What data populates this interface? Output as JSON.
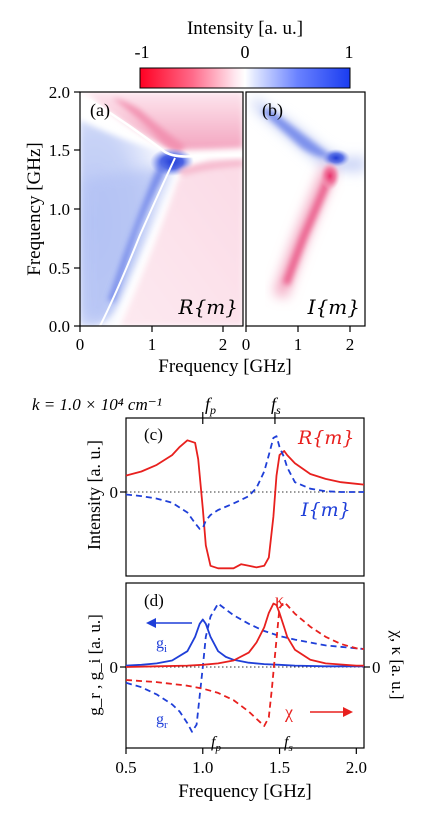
{
  "colorbar": {
    "label": "Intensity [a. u.]",
    "ticks": [
      "-1",
      "0",
      "1"
    ],
    "colors": {
      "neg": "#ff0022",
      "zero": "#ffffff",
      "pos": "#1a3cf0"
    }
  },
  "colors": {
    "red": "#e8201e",
    "blue": "#1f3fd8",
    "dotted": "#333333"
  },
  "panel_a": {
    "tag": "(a)",
    "label": "R{m}"
  },
  "panel_b": {
    "tag": "(b)",
    "label": "I{m}"
  },
  "panel_c": {
    "tag": "(c)",
    "label_red": "R{m}",
    "label_blue": "I{m}"
  },
  "panel_d": {
    "tag": "(d)",
    "kappa": "κ",
    "chi": "χ",
    "gi": "g",
    "gi_sub": "i",
    "gr": "g",
    "gr_sub": "r"
  },
  "k_label": "k = 1.0 × 10⁴ cm⁻¹",
  "fp_label": "f",
  "fp_sub": "p",
  "fs_label": "f",
  "fs_sub": "s",
  "chart_data": [
    {
      "type": "heatmap",
      "title": "(a) R{m}",
      "xlabel": "Frequency [GHz]",
      "ylabel": "Frequency [GHz]",
      "xlim": [
        0,
        2.3
      ],
      "ylim": [
        0,
        2.0
      ],
      "xticks": [
        "0",
        "1",
        "2"
      ],
      "yticks": [
        "0.0",
        "0.5",
        "1.0",
        "1.5",
        "2.0"
      ],
      "colorscale": {
        "min": -1,
        "max": 1
      }
    },
    {
      "type": "heatmap",
      "title": "(b) I{m}",
      "xlabel": "Frequency [GHz]",
      "xlim": [
        0,
        2.3
      ],
      "ylim": [
        0,
        2.0
      ],
      "xticks": [
        "0",
        "1",
        "2"
      ],
      "colorscale": {
        "min": -1,
        "max": 1
      }
    },
    {
      "type": "line",
      "title": "(c)",
      "ylabel": "Intensity [a. u.]",
      "xlim": [
        0.5,
        2.05
      ],
      "ytick": "0",
      "fp": 1.0,
      "fs": 1.47,
      "series": [
        {
          "name": "R{m}",
          "style": "solid",
          "color": "#e8201e",
          "x": [
            0.5,
            0.6,
            0.7,
            0.8,
            0.85,
            0.9,
            0.95,
            0.97,
            1.0,
            1.02,
            1.05,
            1.1,
            1.2,
            1.25,
            1.3,
            1.35,
            1.4,
            1.43,
            1.46,
            1.48,
            1.5,
            1.53,
            1.55,
            1.6,
            1.7,
            1.8,
            1.9,
            2.0,
            2.05
          ],
          "y": [
            0.2,
            0.25,
            0.33,
            0.45,
            0.55,
            0.63,
            0.6,
            0.4,
            -0.2,
            -0.65,
            -0.9,
            -0.93,
            -0.93,
            -0.88,
            -0.9,
            -0.92,
            -0.9,
            -0.8,
            -0.3,
            0.2,
            0.45,
            0.5,
            0.45,
            0.35,
            0.22,
            0.16,
            0.12,
            0.1,
            0.09
          ]
        },
        {
          "name": "I{m}",
          "style": "dashed",
          "color": "#1f3fd8",
          "x": [
            0.5,
            0.6,
            0.7,
            0.8,
            0.9,
            0.95,
            0.98,
            1.0,
            1.02,
            1.05,
            1.1,
            1.2,
            1.3,
            1.35,
            1.4,
            1.43,
            1.46,
            1.48,
            1.5,
            1.53,
            1.55,
            1.6,
            1.7,
            1.8,
            1.9,
            2.0,
            2.05
          ],
          "y": [
            -0.03,
            -0.05,
            -0.08,
            -0.13,
            -0.25,
            -0.38,
            -0.45,
            -0.44,
            -0.35,
            -0.28,
            -0.22,
            -0.14,
            -0.05,
            0.05,
            0.25,
            0.45,
            0.66,
            0.68,
            0.55,
            0.42,
            0.3,
            0.12,
            0.04,
            0.01,
            0.0,
            0.0,
            0.0
          ]
        }
      ]
    },
    {
      "type": "line",
      "title": "(d)",
      "ylabel": "g_r , g_i [a. u.]",
      "y2label": "χ, κ [a. u.]",
      "xlabel": "Frequency [GHz]",
      "xlim": [
        0.5,
        2.05
      ],
      "xticks": [
        0.5,
        1.0,
        1.5,
        2.0
      ],
      "xtick_labels": [
        "0.5",
        "1.0",
        "1.5",
        "2.0"
      ],
      "ytick": "0",
      "y2tick": "0",
      "series": [
        {
          "name": "g_i",
          "style": "solid",
          "color": "#1f3fd8",
          "x": [
            0.5,
            0.6,
            0.7,
            0.8,
            0.9,
            0.95,
            0.98,
            1.0,
            1.02,
            1.05,
            1.1,
            1.15,
            1.2,
            1.3,
            1.4,
            1.5,
            1.6,
            1.8,
            2.0,
            2.05
          ],
          "y": [
            0.02,
            0.03,
            0.05,
            0.09,
            0.22,
            0.42,
            0.6,
            0.66,
            0.6,
            0.42,
            0.22,
            0.14,
            0.1,
            0.06,
            0.04,
            0.03,
            0.02,
            0.01,
            0.01,
            0.01
          ]
        },
        {
          "name": "g_r",
          "style": "dashed",
          "color": "#1f3fd8",
          "x": [
            0.5,
            0.6,
            0.7,
            0.8,
            0.85,
            0.9,
            0.93,
            0.96,
            0.98,
            1.0,
            1.02,
            1.05,
            1.1,
            1.2,
            1.3,
            1.4,
            1.5,
            1.6,
            1.8,
            2.0,
            2.05
          ],
          "y": [
            -0.22,
            -0.28,
            -0.38,
            -0.52,
            -0.62,
            -0.78,
            -0.9,
            -0.8,
            -0.4,
            0.0,
            0.42,
            0.7,
            0.88,
            0.72,
            0.6,
            0.5,
            0.43,
            0.38,
            0.3,
            0.26,
            0.25
          ]
        },
        {
          "name": "κ",
          "style": "solid",
          "color": "#e8201e",
          "x": [
            0.5,
            0.7,
            0.9,
            1.0,
            1.1,
            1.2,
            1.3,
            1.35,
            1.4,
            1.43,
            1.46,
            1.48,
            1.5,
            1.53,
            1.55,
            1.6,
            1.7,
            1.8,
            2.0,
            2.05
          ],
          "y": [
            0.0,
            0.01,
            0.02,
            0.03,
            0.05,
            0.09,
            0.2,
            0.34,
            0.55,
            0.75,
            0.88,
            0.86,
            0.75,
            0.55,
            0.42,
            0.24,
            0.1,
            0.05,
            0.02,
            0.02
          ]
        },
        {
          "name": "χ",
          "style": "dashed",
          "color": "#e8201e",
          "x": [
            0.5,
            0.7,
            0.9,
            1.0,
            1.1,
            1.2,
            1.3,
            1.35,
            1.4,
            1.43,
            1.45,
            1.47,
            1.5,
            1.53,
            1.55,
            1.6,
            1.7,
            1.8,
            1.9,
            2.0,
            2.05
          ],
          "y": [
            -0.18,
            -0.21,
            -0.26,
            -0.3,
            -0.36,
            -0.46,
            -0.62,
            -0.72,
            -0.82,
            -0.7,
            -0.3,
            0.15,
            0.82,
            0.9,
            0.86,
            0.74,
            0.56,
            0.42,
            0.32,
            0.26,
            0.25
          ]
        }
      ]
    }
  ]
}
